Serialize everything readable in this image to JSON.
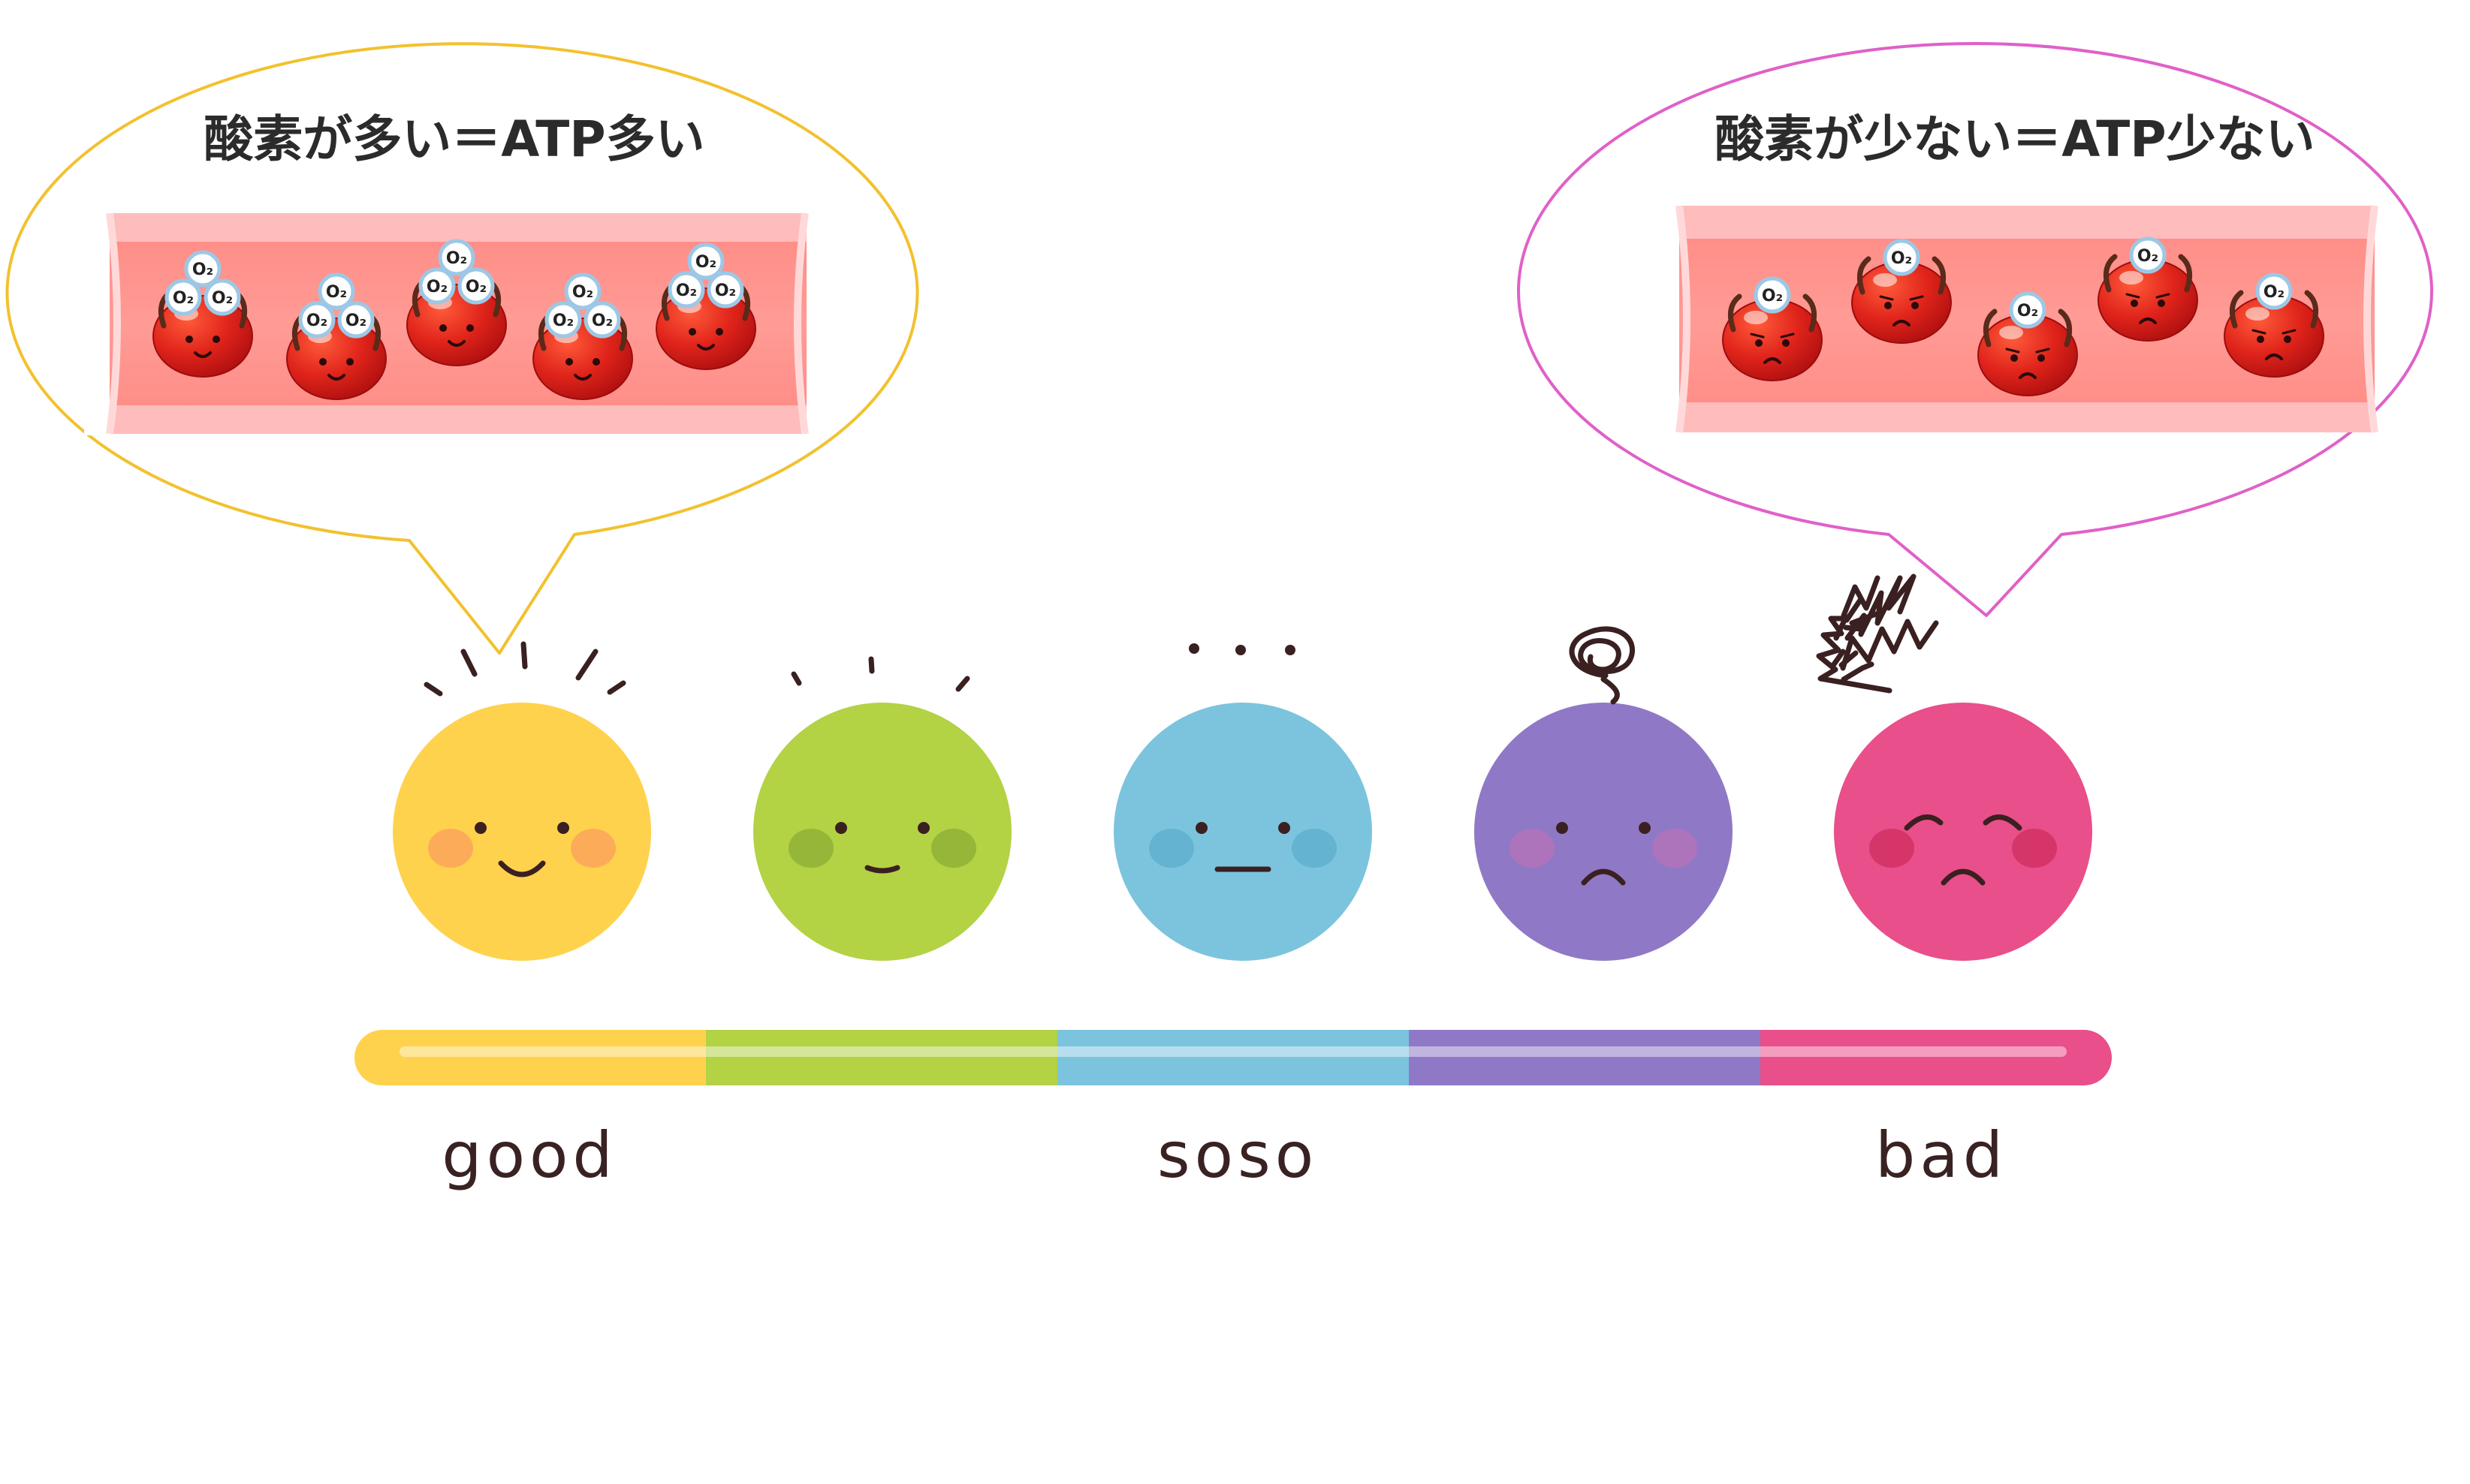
{
  "callouts": {
    "high_oxygen": {
      "title": "酸素が多い＝ATP多い",
      "oxygen_label": "O₂",
      "cell_mood": "happy",
      "cells_count": 5,
      "oxygen_per_cell": 3,
      "border_color": "#f2c12e"
    },
    "low_oxygen": {
      "title": "酸素が少ない＝ATP少ない",
      "oxygen_label": "O₂",
      "cell_mood": "sad",
      "cells_count": 5,
      "oxygen_per_cell": 1,
      "border_color": "#e060c8"
    }
  },
  "scale": {
    "labels": {
      "good": "good",
      "soso": "soso",
      "bad": "bad"
    },
    "faces": [
      {
        "name": "face-good",
        "mood": "happy",
        "color": "#ffd24d",
        "cheek": "#fba65a"
      },
      {
        "name": "face-fine",
        "mood": "content",
        "color": "#b3d244",
        "cheek": "#8fb237"
      },
      {
        "name": "face-soso",
        "mood": "neutral",
        "color": "#7cc4dd",
        "cheek": "#5fb0cf"
      },
      {
        "name": "face-meh",
        "mood": "worried",
        "color": "#8f79c6",
        "cheek": "#b373b8"
      },
      {
        "name": "face-bad",
        "mood": "distressed",
        "color": "#e94f8a",
        "cheek": "#d13062"
      }
    ],
    "bar_colors": [
      "#ffd24d",
      "#b3d244",
      "#7cc4dd",
      "#8f79c6",
      "#e94f8a"
    ]
  }
}
